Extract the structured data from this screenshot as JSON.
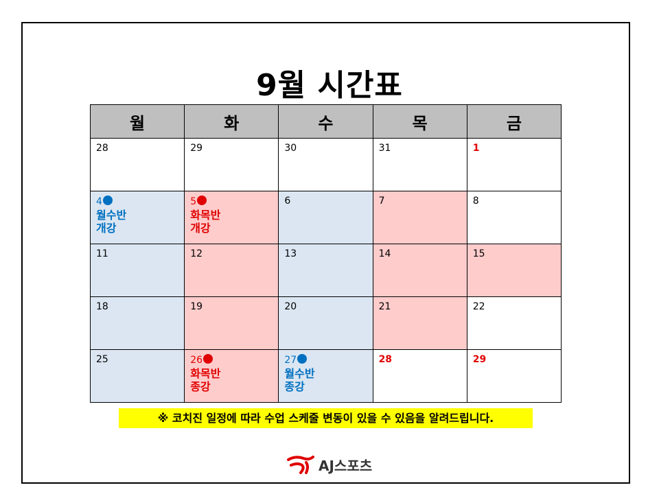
{
  "title": "9월 시간표",
  "weekdays": [
    "월",
    "화",
    "수",
    "목",
    "금"
  ],
  "rows": [
    [
      {
        "date": "28",
        "style": "white"
      },
      {
        "date": "29",
        "style": "white"
      },
      {
        "date": "30",
        "style": "white"
      },
      {
        "date": "31",
        "style": "white"
      },
      {
        "date": "1",
        "style": "white",
        "date_red": true
      }
    ],
    [
      {
        "date": "4",
        "style": "blue",
        "dot": "blue",
        "event": [
          "월수반",
          "개강"
        ],
        "event_color": "blue"
      },
      {
        "date": "5",
        "style": "pink",
        "dot": "red",
        "event": [
          "화목반",
          "개강"
        ],
        "event_color": "red"
      },
      {
        "date": "6",
        "style": "blue"
      },
      {
        "date": "7",
        "style": "pink"
      },
      {
        "date": "8",
        "style": "white"
      }
    ],
    [
      {
        "date": "11",
        "style": "blue"
      },
      {
        "date": "12",
        "style": "pink"
      },
      {
        "date": "13",
        "style": "blue"
      },
      {
        "date": "14",
        "style": "pink"
      },
      {
        "date": "15",
        "style": "pink"
      }
    ],
    [
      {
        "date": "18",
        "style": "blue"
      },
      {
        "date": "19",
        "style": "pink"
      },
      {
        "date": "20",
        "style": "blue"
      },
      {
        "date": "21",
        "style": "pink"
      },
      {
        "date": "22",
        "style": "white"
      }
    ],
    [
      {
        "date": "25",
        "style": "blue"
      },
      {
        "date": "26",
        "style": "pink",
        "dot": "red",
        "event": [
          "화목반",
          "종강"
        ],
        "event_color": "red"
      },
      {
        "date": "27",
        "style": "blue",
        "dot": "blue",
        "event": [
          "월수반",
          "종강"
        ],
        "event_color": "blue"
      },
      {
        "date": "28",
        "style": "white",
        "date_red": true
      },
      {
        "date": "29",
        "style": "white",
        "date_red": true
      }
    ]
  ],
  "notice": "※ 코치진 일정에 따라 수업 스케줄 변동이 있을 수 있음을 알려드립니다.",
  "logo": {
    "text": "AJ스포츠",
    "icon": "aj-logo-icon"
  },
  "colors": {
    "header_bg": "#bfbfbf",
    "blue_cell": "#dbe6f2",
    "pink_cell": "#ffcccc",
    "blue_text": "#0070c0",
    "red_text": "#e00000",
    "notice_bg": "#ffff00"
  }
}
